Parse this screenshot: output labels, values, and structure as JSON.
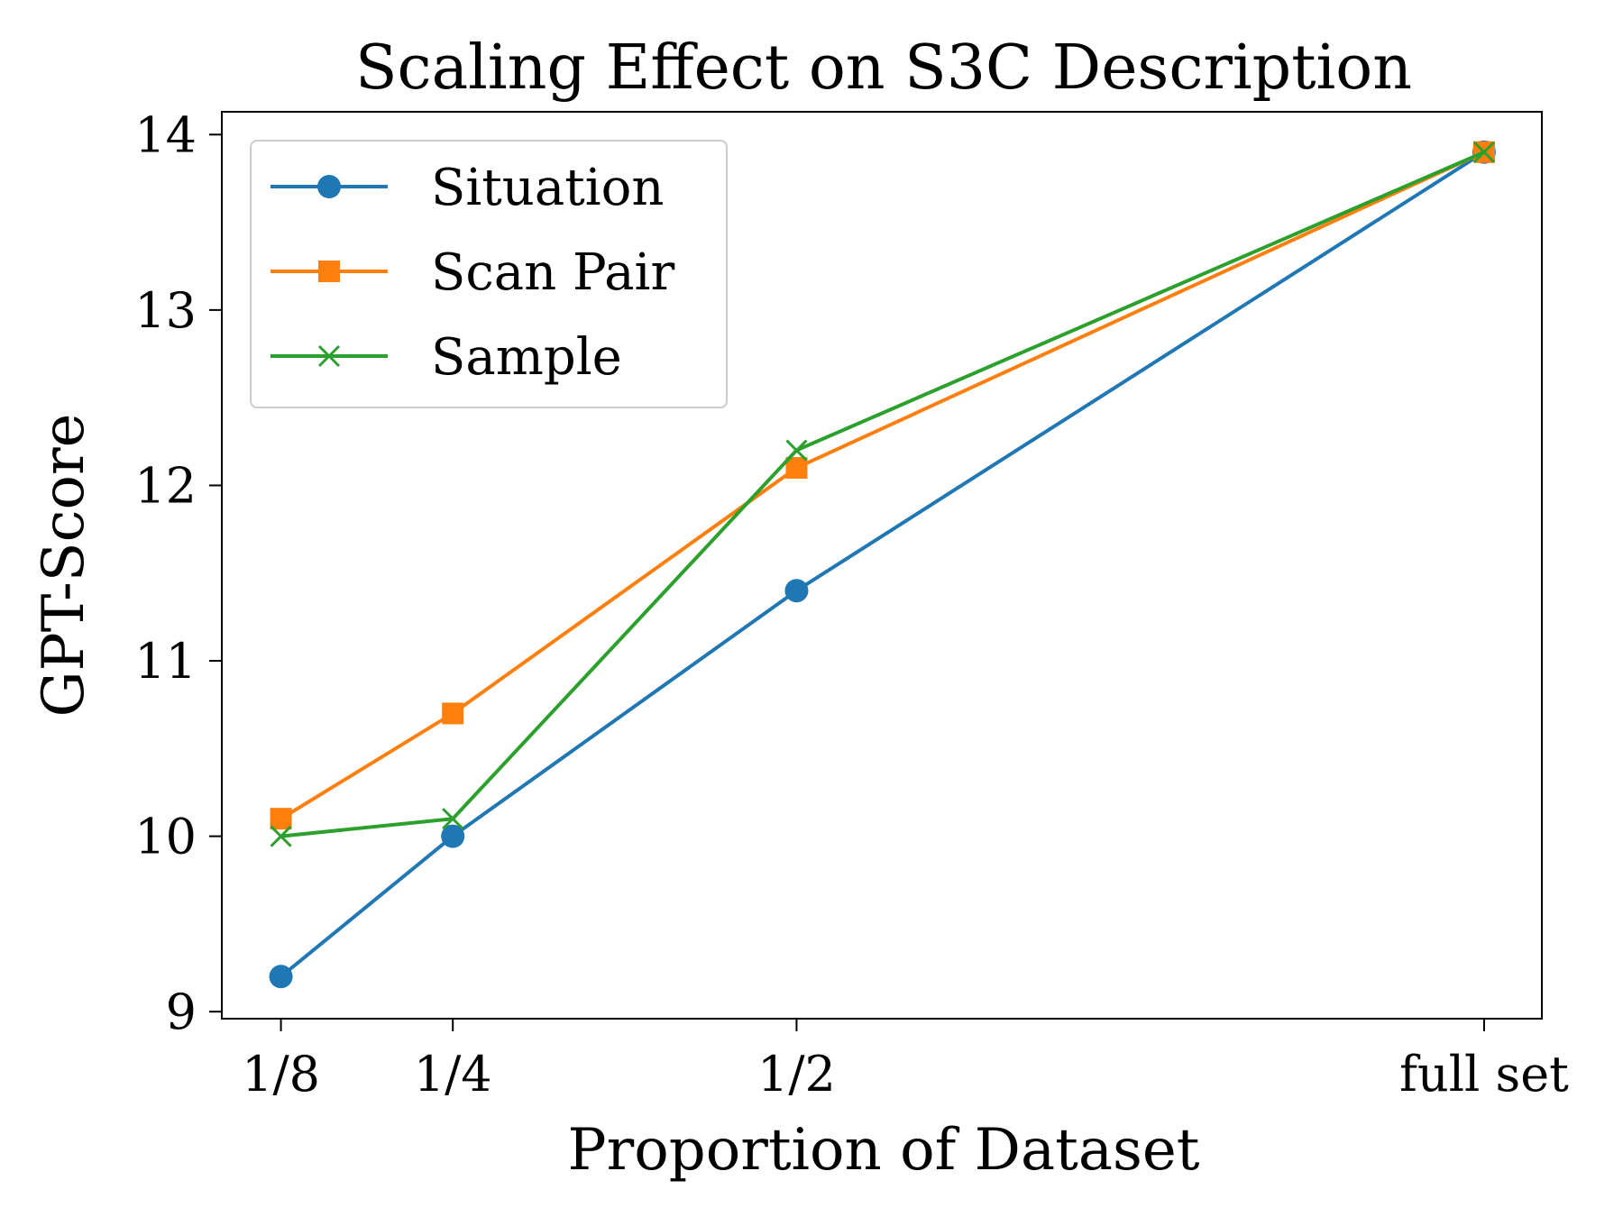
{
  "chart_data": {
    "type": "line",
    "title": "Scaling Effect on S3C Description",
    "xlabel": "Proportion of Dataset",
    "ylabel": "GPT-Score",
    "categories": [
      "1/8",
      "1/4",
      "1/2",
      "full set"
    ],
    "x": [
      0.125,
      0.25,
      0.5,
      1.0
    ],
    "xlim": [
      0.082,
      1.042
    ],
    "ylim": [
      8.96,
      14.13
    ],
    "yticks": [
      9,
      10,
      11,
      12,
      13,
      14
    ],
    "grid": false,
    "legend_position": "upper-left",
    "series": [
      {
        "name": "Situation",
        "color": "#1f77b4",
        "marker": "circle",
        "values": [
          9.2,
          10.0,
          11.4,
          13.9
        ]
      },
      {
        "name": "Scan Pair",
        "color": "#ff7f0e",
        "marker": "square",
        "values": [
          10.1,
          10.7,
          12.1,
          13.9
        ]
      },
      {
        "name": "Sample",
        "color": "#2ca02c",
        "marker": "x",
        "values": [
          10.0,
          10.1,
          12.2,
          13.9
        ]
      }
    ]
  }
}
